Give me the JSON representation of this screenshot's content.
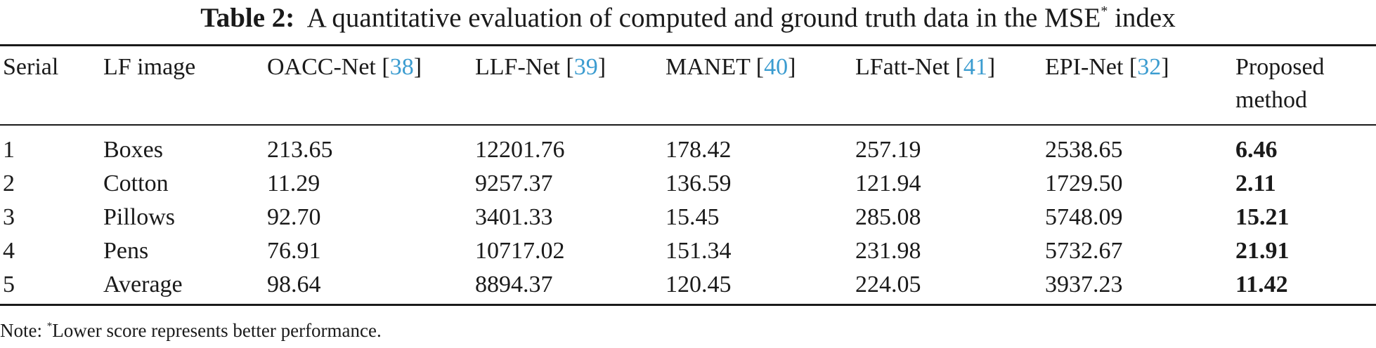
{
  "caption": {
    "label": "Table 2:",
    "text": "A quantitative evaluation of computed and ground truth data in the MSE",
    "sup": "*",
    "suffix": "index"
  },
  "columns": [
    {
      "label": "Serial",
      "ref": ""
    },
    {
      "label": "LF image",
      "ref": ""
    },
    {
      "label": "OACC-Net [",
      "ref": "38",
      "close": "]"
    },
    {
      "label": "LLF-Net [",
      "ref": "39",
      "close": "]"
    },
    {
      "label": "MANET [",
      "ref": "40",
      "close": "]"
    },
    {
      "label": "LFatt-Net [",
      "ref": "41",
      "close": "]"
    },
    {
      "label": "EPI-Net [",
      "ref": "32",
      "close": "]"
    },
    {
      "label_line1": "Proposed",
      "label_line2": "method"
    }
  ],
  "rows": [
    [
      "1",
      "Boxes",
      "213.65",
      "12201.76",
      "178.42",
      "257.19",
      "2538.65",
      "6.46"
    ],
    [
      "2",
      "Cotton",
      "11.29",
      "9257.37",
      "136.59",
      "121.94",
      "1729.50",
      "2.11"
    ],
    [
      "3",
      "Pillows",
      "92.70",
      "3401.33",
      "15.45",
      "285.08",
      "5748.09",
      "15.21"
    ],
    [
      "4",
      "Pens",
      "76.91",
      "10717.02",
      "151.34",
      "231.98",
      "5732.67",
      "21.91"
    ],
    [
      "5",
      "Average",
      "98.64",
      "8894.37",
      "120.45",
      "224.05",
      "3937.23",
      "11.42"
    ]
  ],
  "note": {
    "prefix": "Note: ",
    "sup": "*",
    "text": "Lower score represents better performance."
  }
}
